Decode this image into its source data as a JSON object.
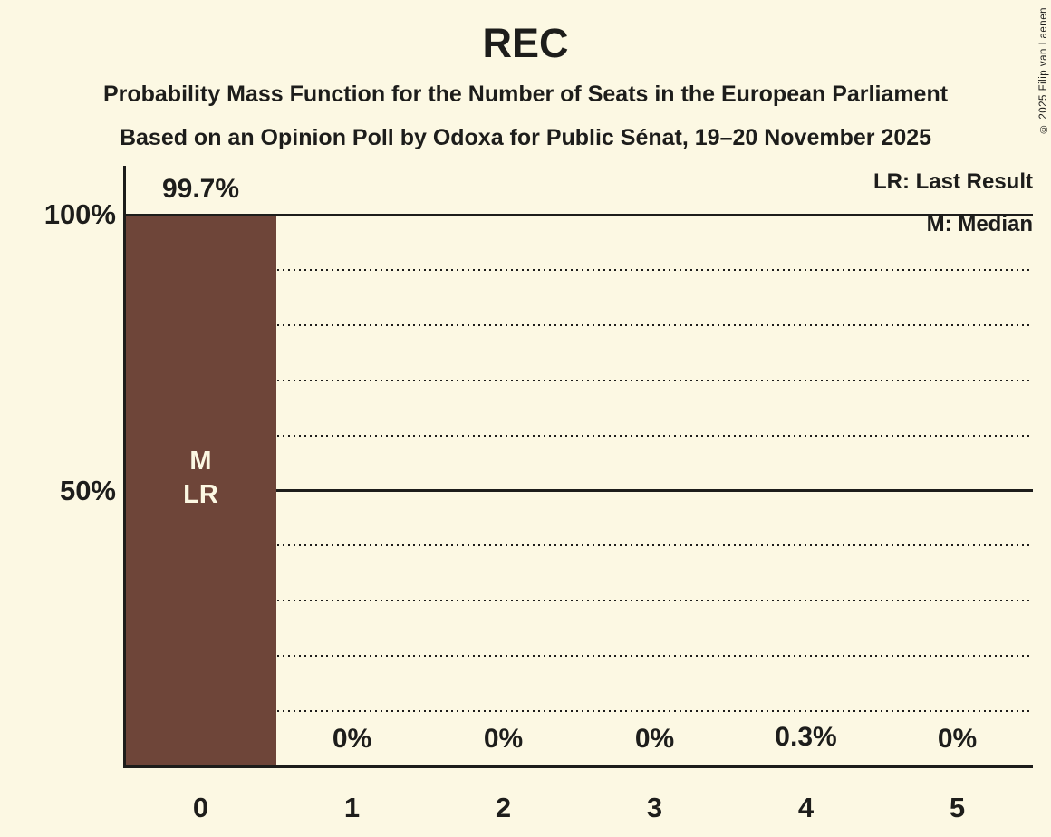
{
  "header": {
    "title": "REC",
    "subtitle1": "Probability Mass Function for the Number of Seats in the European Parliament",
    "subtitle2": "Based on an Opinion Poll by Odoxa for Public Sénat, 19–20 November 2025"
  },
  "legend": {
    "lr": "LR: Last Result",
    "m": "M: Median"
  },
  "copyright": "© 2025 Filip van Laenen",
  "colors": {
    "background": "#FCF8E3",
    "bar": "#6E4539",
    "text": "#1D1D1B",
    "bar_label_text": "#FCF8E3"
  },
  "chart_data": {
    "type": "bar",
    "title": "REC",
    "categories": [
      "0",
      "1",
      "2",
      "3",
      "4",
      "5"
    ],
    "values": [
      99.7,
      0,
      0,
      0,
      0.3,
      0
    ],
    "value_labels": [
      "99.7%",
      "0%",
      "0%",
      "0%",
      "0.3%",
      "0%"
    ],
    "bar_annotations": [
      [
        "M",
        "LR"
      ],
      [],
      [],
      [],
      [],
      []
    ],
    "ylim": [
      0,
      100
    ],
    "y_ticks": [
      {
        "value": 100,
        "label": "100%"
      },
      {
        "value": 50,
        "label": "50%"
      }
    ],
    "solid_gridlines": [
      100,
      50
    ],
    "dotted_gridlines": [
      90,
      80,
      70,
      60,
      40,
      30,
      20,
      10
    ],
    "legend_entries": [
      "LR: Last Result",
      "M: Median"
    ],
    "legend_position": "top-right",
    "grid": "horizontal"
  }
}
